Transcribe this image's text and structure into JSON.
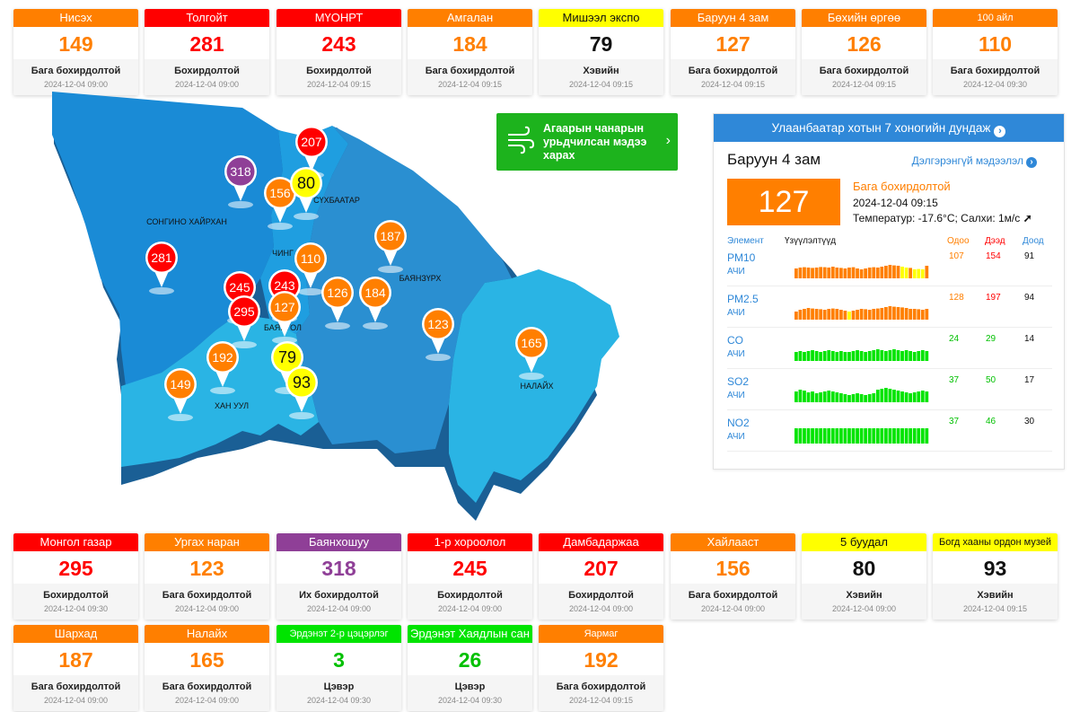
{
  "colors": {
    "unhealthy": "#ff0000",
    "sensitive": "#ff7f00",
    "moderate": "#ffff00",
    "very_unhealthy": "#8f3f97",
    "good": "#00e400",
    "map_blue": "#2a8fd1"
  },
  "top_stations": [
    {
      "name": "Нисэх",
      "value": "149",
      "level": "Бага бохирдолтой",
      "time": "2024-12-04 09:00",
      "color": "#ff7f00",
      "text": "#fff",
      "valcolor": "#ff7f00"
    },
    {
      "name": "Толгойт",
      "value": "281",
      "level": "Бохирдолтой",
      "time": "2024-12-04 09:00",
      "color": "#ff0000",
      "text": "#fff",
      "valcolor": "#ff0000"
    },
    {
      "name": "МҮОНРТ",
      "value": "243",
      "level": "Бохирдолтой",
      "time": "2024-12-04 09:15",
      "color": "#ff0000",
      "text": "#fff",
      "valcolor": "#ff0000"
    },
    {
      "name": "Амгалан",
      "value": "184",
      "level": "Бага бохирдолтой",
      "time": "2024-12-04 09:15",
      "color": "#ff7f00",
      "text": "#fff",
      "valcolor": "#ff7f00"
    },
    {
      "name": "Мишээл экспо",
      "value": "79",
      "level": "Хэвийн",
      "time": "2024-12-04 09:15",
      "color": "#ffff00",
      "text": "#111",
      "valcolor": "#111"
    },
    {
      "name": "Баруун 4 зам",
      "value": "127",
      "level": "Бага бохирдолтой",
      "time": "2024-12-04 09:15",
      "color": "#ff7f00",
      "text": "#fff",
      "valcolor": "#ff7f00"
    },
    {
      "name": "Бөхийн өргөө",
      "value": "126",
      "level": "Бага бохирдолтой",
      "time": "2024-12-04 09:15",
      "color": "#ff7f00",
      "text": "#fff",
      "valcolor": "#ff7f00"
    },
    {
      "name": "100 айл",
      "value": "110",
      "level": "Бага бохирдолтой",
      "time": "2024-12-04 09:30",
      "color": "#ff7f00",
      "text": "#fff",
      "valcolor": "#ff7f00",
      "small": true
    }
  ],
  "bottom_stations_row1": [
    {
      "name": "Монгол газар",
      "value": "295",
      "level": "Бохирдолтой",
      "time": "2024-12-04 09:30",
      "color": "#ff0000",
      "text": "#fff",
      "valcolor": "#ff0000"
    },
    {
      "name": "Ургах наран",
      "value": "123",
      "level": "Бага бохирдолтой",
      "time": "2024-12-04 09:00",
      "color": "#ff7f00",
      "text": "#fff",
      "valcolor": "#ff7f00"
    },
    {
      "name": "Баянхошуу",
      "value": "318",
      "level": "Их бохирдолтой",
      "time": "2024-12-04 09:00",
      "color": "#8f3f97",
      "text": "#fff",
      "valcolor": "#8f3f97"
    },
    {
      "name": "1-р хороолол",
      "value": "245",
      "level": "Бохирдолтой",
      "time": "2024-12-04 09:00",
      "color": "#ff0000",
      "text": "#fff",
      "valcolor": "#ff0000"
    },
    {
      "name": "Дамбадаржаа",
      "value": "207",
      "level": "Бохирдолтой",
      "time": "2024-12-04 09:00",
      "color": "#ff0000",
      "text": "#fff",
      "valcolor": "#ff0000"
    },
    {
      "name": "Хайлааст",
      "value": "156",
      "level": "Бага бохирдолтой",
      "time": "2024-12-04 09:00",
      "color": "#ff7f00",
      "text": "#fff",
      "valcolor": "#ff7f00"
    },
    {
      "name": "5 буудал",
      "value": "80",
      "level": "Хэвийн",
      "time": "2024-12-04 09:00",
      "color": "#ffff00",
      "text": "#111",
      "valcolor": "#111"
    },
    {
      "name": "Богд хааны ордон музей",
      "value": "93",
      "level": "Хэвийн",
      "time": "2024-12-04 09:15",
      "color": "#ffff00",
      "text": "#111",
      "valcolor": "#111",
      "small": true
    }
  ],
  "bottom_stations_row2": [
    {
      "name": "Шархад",
      "value": "187",
      "level": "Бага бохирдолтой",
      "time": "2024-12-04 09:00",
      "color": "#ff7f00",
      "text": "#fff",
      "valcolor": "#ff7f00"
    },
    {
      "name": "Налайх",
      "value": "165",
      "level": "Бага бохирдолтой",
      "time": "2024-12-04 09:00",
      "color": "#ff7f00",
      "text": "#fff",
      "valcolor": "#ff7f00"
    },
    {
      "name": "Эрдэнэт 2-р цэцэрлэг",
      "value": "3",
      "level": "Цэвэр",
      "time": "2024-12-04 09:30",
      "color": "#00e400",
      "text": "#fff",
      "valcolor": "#00c000",
      "small": true
    },
    {
      "name": "Эрдэнэт Хаядлын сан",
      "value": "26",
      "level": "Цэвэр",
      "time": "2024-12-04 09:30",
      "color": "#00e400",
      "text": "#fff",
      "valcolor": "#00c000"
    },
    {
      "name": "Яармаг",
      "value": "192",
      "level": "Бага бохирдолтой",
      "time": "2024-12-04 09:15",
      "color": "#ff7f00",
      "text": "#fff",
      "valcolor": "#ff7f00",
      "small": true
    }
  ],
  "map": {
    "districts": [
      "СОНГИНО ХАЙРХАН",
      "БАЯНЗҮРХ",
      "НАЛАЙХ",
      "ХАН УУЛ",
      "ЧИНГ",
      "СҮХБААТАР",
      "БАЯНГОЛ"
    ],
    "pins": [
      {
        "value": "207",
        "color": "#ff0000"
      },
      {
        "value": "318",
        "color": "#8f3f97"
      },
      {
        "value": "156",
        "color": "#ff7f00"
      },
      {
        "value": "80",
        "color": "#ffff00"
      },
      {
        "value": "187",
        "color": "#ff7f00"
      },
      {
        "value": "110",
        "color": "#ff7f00"
      },
      {
        "value": "281",
        "color": "#ff0000"
      },
      {
        "value": "245",
        "color": "#ff0000"
      },
      {
        "value": "243",
        "color": "#ff0000"
      },
      {
        "value": "126",
        "color": "#ff7f00"
      },
      {
        "value": "184",
        "color": "#ff7f00"
      },
      {
        "value": "295",
        "color": "#ff0000"
      },
      {
        "value": "127",
        "color": "#ff7f00"
      },
      {
        "value": "123",
        "color": "#ff7f00"
      },
      {
        "value": "165",
        "color": "#ff7f00"
      },
      {
        "value": "192",
        "color": "#ff7f00"
      },
      {
        "value": "79",
        "color": "#ffff00"
      },
      {
        "value": "149",
        "color": "#ff7f00"
      },
      {
        "value": "93",
        "color": "#ffff00"
      }
    ]
  },
  "forecast_button": {
    "label": "Агаарын чанарын урьдчилсан мэдээ харах",
    "icon": "wind-icon"
  },
  "panel": {
    "header": "Улаанбаатар хотын 7 хоногийн дундаж",
    "station": "Баруун 4 зам",
    "more_link": "Дэлгэрэнгүй мэдээлэл",
    "aqi": "127",
    "level": "Бага бохирдолтой",
    "time": "2024-12-04 09:15",
    "weather": "Температур: -17.6°C; Салхи: 1м/с",
    "wind_direction_icon": "arrow-up-right-icon",
    "col_element": "Элемент",
    "col_indicator": "Үзүүлэлтүүд",
    "col_current": "Одоо",
    "col_max": "Дээд",
    "col_min": "Доод",
    "pollutants": [
      {
        "name": "PM10",
        "level": "АЧИ",
        "current": "107",
        "max": "154",
        "min": "91",
        "curcolor": "#ff7f00",
        "maxcolor": "#ff0000",
        "bar_colors": [
          "#ff7f00",
          "#ff7f00",
          "#ff7f00",
          "#ff7f00",
          "#ff7f00",
          "#ff7f00",
          "#ff7f00",
          "#ff7f00",
          "#ff7f00",
          "#ff7f00",
          "#ff7f00",
          "#ff7f00",
          "#ff7f00",
          "#ff7f00",
          "#ff7f00",
          "#ff7f00",
          "#ff7f00",
          "#ff7f00",
          "#ff7f00",
          "#ff7f00",
          "#ff7f00",
          "#ff7f00",
          "#ff7f00",
          "#ff7f00",
          "#ff7f00",
          "#ff7f00",
          "#ffff00",
          "#ffff00",
          "#ff7f00",
          "#ffff00",
          "#ffff00",
          "#ffff00",
          "#ff7f00"
        ],
        "bar_levels": [
          0.55,
          0.6,
          0.62,
          0.6,
          0.58,
          0.6,
          0.63,
          0.62,
          0.6,
          0.65,
          0.6,
          0.58,
          0.55,
          0.6,
          0.62,
          0.55,
          0.5,
          0.55,
          0.6,
          0.62,
          0.6,
          0.65,
          0.7,
          0.75,
          0.72,
          0.7,
          0.65,
          0.6,
          0.58,
          0.5,
          0.52,
          0.5,
          0.7
        ]
      },
      {
        "name": "PM2.5",
        "level": "АЧИ",
        "current": "128",
        "max": "197",
        "min": "94",
        "curcolor": "#ff7f00",
        "maxcolor": "#ff0000",
        "bar_colors": [
          "#ff7f00",
          "#ff7f00",
          "#ff7f00",
          "#ff7f00",
          "#ff7f00",
          "#ff7f00",
          "#ff7f00",
          "#ff7f00",
          "#ff7f00",
          "#ff7f00",
          "#ff7f00",
          "#ff7f00",
          "#ff7f00",
          "#ffff00",
          "#ff7f00",
          "#ff7f00",
          "#ff7f00",
          "#ff7f00",
          "#ff7f00",
          "#ff7f00",
          "#ff7f00",
          "#ff7f00",
          "#ff7f00",
          "#ff7f00",
          "#ff7f00",
          "#ff7f00",
          "#ff7f00",
          "#ff7f00",
          "#ff7f00",
          "#ff7f00",
          "#ff7f00",
          "#ff7f00",
          "#ff7f00"
        ],
        "bar_levels": [
          0.45,
          0.55,
          0.6,
          0.65,
          0.62,
          0.6,
          0.58,
          0.55,
          0.6,
          0.62,
          0.6,
          0.55,
          0.5,
          0.45,
          0.5,
          0.55,
          0.6,
          0.58,
          0.55,
          0.6,
          0.62,
          0.65,
          0.7,
          0.75,
          0.72,
          0.7,
          0.68,
          0.65,
          0.6,
          0.6,
          0.58,
          0.55,
          0.6
        ]
      },
      {
        "name": "CO",
        "level": "АЧИ",
        "current": "24",
        "max": "29",
        "min": "14",
        "curcolor": "#00c000",
        "maxcolor": "#00c000",
        "bar_colors": [
          "#00e400"
        ],
        "bar_levels": [
          0.5,
          0.55,
          0.5,
          0.55,
          0.6,
          0.55,
          0.5,
          0.55,
          0.6,
          0.55,
          0.5,
          0.55,
          0.5,
          0.5,
          0.55,
          0.6,
          0.55,
          0.5,
          0.55,
          0.6,
          0.65,
          0.6,
          0.55,
          0.6,
          0.65,
          0.6,
          0.55,
          0.6,
          0.55,
          0.5,
          0.55,
          0.6,
          0.55
        ]
      },
      {
        "name": "SO2",
        "level": "АЧИ",
        "current": "37",
        "max": "50",
        "min": "17",
        "curcolor": "#00c000",
        "maxcolor": "#00c000",
        "bar_colors": [
          "#00e400"
        ],
        "bar_levels": [
          0.6,
          0.7,
          0.65,
          0.55,
          0.6,
          0.5,
          0.55,
          0.6,
          0.65,
          0.6,
          0.55,
          0.5,
          0.45,
          0.4,
          0.45,
          0.5,
          0.45,
          0.4,
          0.45,
          0.5,
          0.7,
          0.75,
          0.8,
          0.75,
          0.7,
          0.65,
          0.6,
          0.55,
          0.5,
          0.55,
          0.6,
          0.65,
          0.6
        ]
      },
      {
        "name": "NO2",
        "level": "АЧИ",
        "current": "37",
        "max": "46",
        "min": "30",
        "curcolor": "#00c000",
        "maxcolor": "#00c000",
        "bar_colors": [
          "#00e400"
        ],
        "bar_levels": [
          0.85,
          0.85,
          0.85,
          0.85,
          0.85,
          0.85,
          0.85,
          0.85,
          0.85,
          0.85,
          0.85,
          0.85,
          0.85,
          0.85,
          0.85,
          0.85,
          0.85,
          0.85,
          0.85,
          0.85,
          0.85,
          0.85,
          0.85,
          0.85,
          0.85,
          0.85,
          0.85,
          0.85,
          0.85,
          0.85,
          0.85,
          0.85,
          0.85
        ]
      }
    ]
  }
}
